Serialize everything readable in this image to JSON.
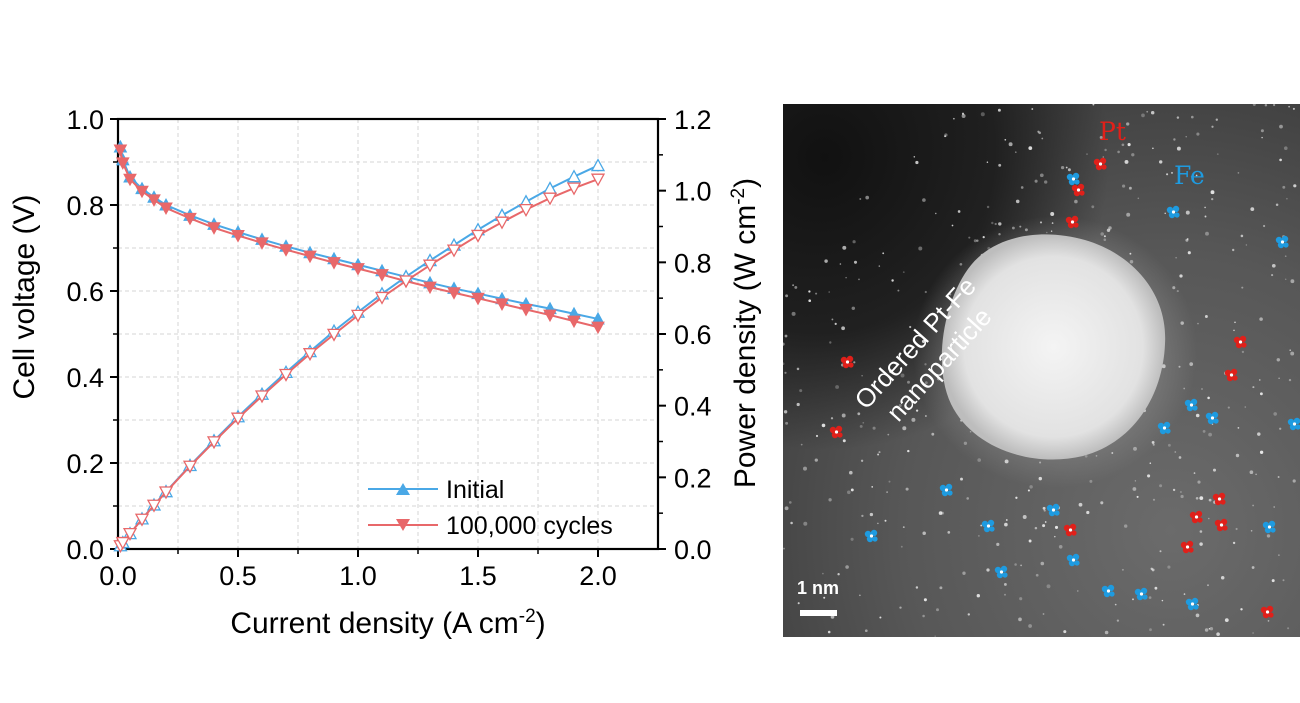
{
  "chart_data": {
    "type": "line",
    "xlabel": "Current density (A cm",
    "xlabel_sup": "-2",
    "xlabel_end": ")",
    "ylabel_left": "Cell voltage (V)",
    "ylabel_right": "Power density (W cm",
    "ylabel_right_sup": "-2",
    "ylabel_right_end": ")",
    "xlim": [
      0,
      2.25
    ],
    "ylim_left": [
      0,
      1.0
    ],
    "ylim_right": [
      0,
      1.2
    ],
    "xticks": [
      "0.0",
      "0.5",
      "1.0",
      "1.5",
      "2.0"
    ],
    "yticks_left": [
      "0.0",
      "0.2",
      "0.4",
      "0.6",
      "0.8",
      "1.0"
    ],
    "yticks_right": [
      "0.0",
      "0.2",
      "0.4",
      "0.6",
      "0.8",
      "1.0",
      "1.2"
    ],
    "grid": true,
    "legend_position": "bottom-right",
    "x": [
      0.01,
      0.02,
      0.05,
      0.1,
      0.15,
      0.2,
      0.3,
      0.4,
      0.5,
      0.6,
      0.7,
      0.8,
      0.9,
      1.0,
      1.1,
      1.2,
      1.3,
      1.4,
      1.5,
      1.6,
      1.7,
      1.8,
      1.9,
      2.0
    ],
    "series": [
      {
        "name": "Initial",
        "color": "#4aa8e6",
        "marker": "triangle-up",
        "voltage": [
          0.935,
          0.905,
          0.865,
          0.838,
          0.818,
          0.8,
          0.776,
          0.755,
          0.737,
          0.72,
          0.704,
          0.689,
          0.675,
          0.661,
          0.647,
          0.633,
          0.619,
          0.606,
          0.594,
          0.582,
          0.57,
          0.559,
          0.547,
          0.535
        ],
        "power": [
          0.009,
          0.018,
          0.043,
          0.084,
          0.123,
          0.16,
          0.233,
          0.302,
          0.369,
          0.432,
          0.493,
          0.551,
          0.608,
          0.661,
          0.712,
          0.76,
          0.805,
          0.848,
          0.891,
          0.931,
          0.969,
          1.006,
          1.039,
          1.07
        ]
      },
      {
        "name": "100,000 cycles",
        "color": "#e8686a",
        "marker": "triangle-down",
        "voltage": [
          0.928,
          0.898,
          0.86,
          0.832,
          0.812,
          0.793,
          0.769,
          0.747,
          0.729,
          0.712,
          0.696,
          0.681,
          0.666,
          0.652,
          0.638,
          0.623,
          0.609,
          0.596,
          0.583,
          0.57,
          0.557,
          0.544,
          0.53,
          0.516
        ],
        "power": [
          0.009,
          0.018,
          0.043,
          0.083,
          0.122,
          0.159,
          0.231,
          0.299,
          0.365,
          0.427,
          0.487,
          0.545,
          0.599,
          0.652,
          0.702,
          0.748,
          0.792,
          0.834,
          0.875,
          0.912,
          0.947,
          0.979,
          1.007,
          1.032
        ]
      }
    ]
  },
  "micrograph": {
    "label_particle_line1": "Ordered Pt-Fe",
    "label_particle_line2": "nanoparticle",
    "label_pt": "Pt",
    "label_fe": "Fe",
    "scale_bar_label": "1 nm",
    "pt_color": "#e0201a",
    "fe_color": "#1e9be0"
  }
}
